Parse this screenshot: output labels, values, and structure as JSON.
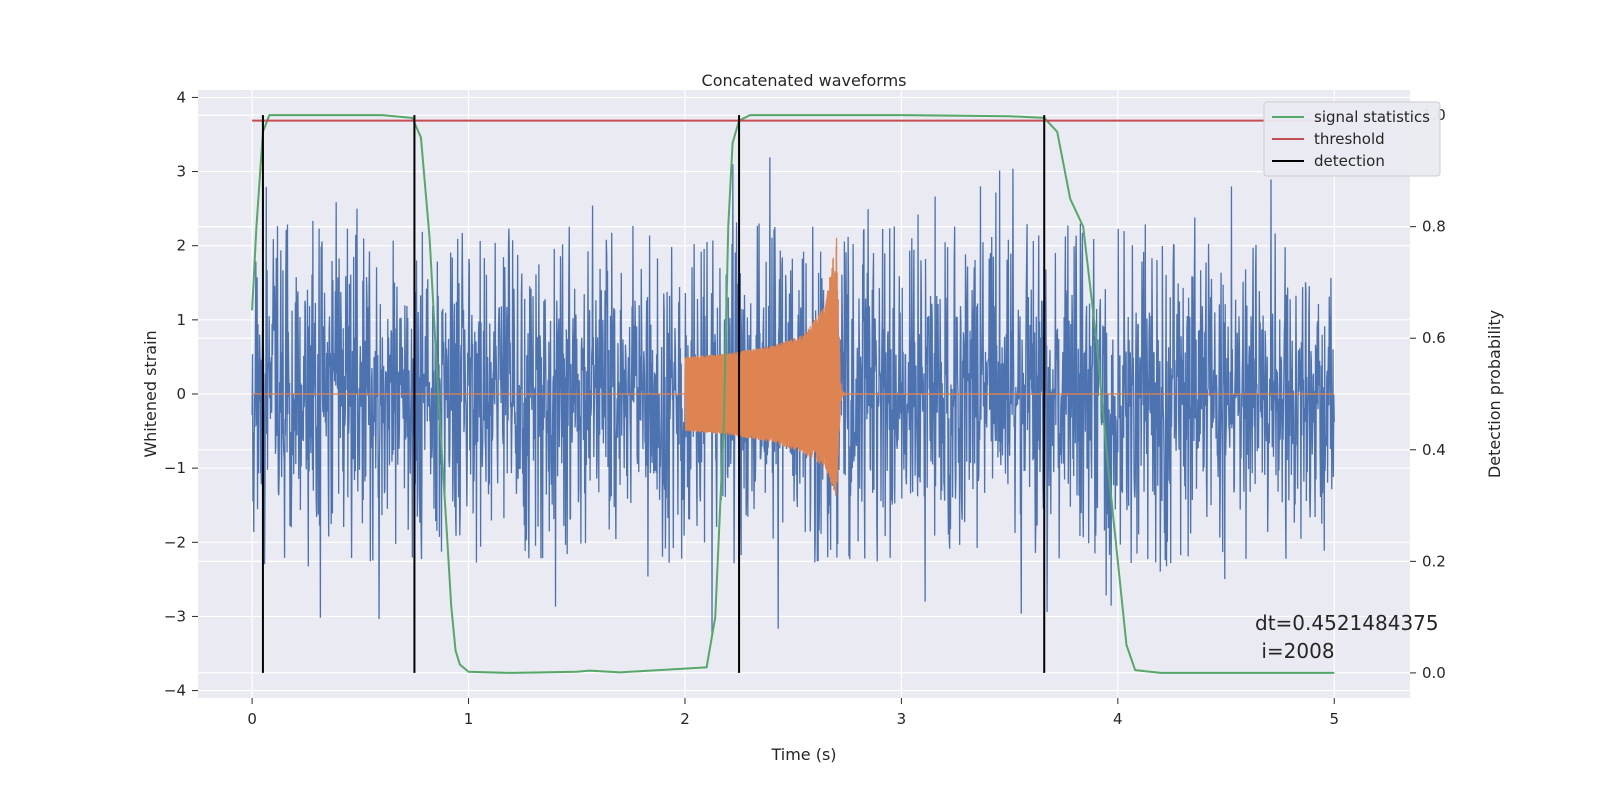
{
  "chart_data": {
    "type": "line",
    "title": "Concatenated waveforms",
    "xlabel": "Time (s)",
    "ylabel": "Whitened strain",
    "ylabel_right": "Detection probability",
    "xlim": [
      -0.25,
      5.35
    ],
    "ylim": [
      -4.1,
      4.1
    ],
    "ylim_right": [
      -0.045,
      1.045
    ],
    "x_ticks": [
      0,
      1,
      2,
      3,
      4,
      5
    ],
    "y_ticks": [
      -4,
      -3,
      -2,
      -1,
      0,
      1,
      2,
      3,
      4
    ],
    "y_ticks_right": [
      0.0,
      0.2,
      0.4,
      0.6,
      0.8,
      1.0
    ],
    "x_tick_labels": [
      "0",
      "1",
      "2",
      "3",
      "4",
      "5"
    ],
    "y_tick_labels": [
      "−4",
      "−3",
      "−2",
      "−1",
      "0",
      "1",
      "2",
      "3",
      "4"
    ],
    "y_tick_labels_right": [
      "0.0",
      "0.2",
      "0.4",
      "0.6",
      "0.8",
      "1.0"
    ],
    "grid": true,
    "legend_position": "top-right",
    "legend": [
      {
        "label": "signal statistics",
        "color": "#55a868"
      },
      {
        "label": "threshold",
        "color": "#c44e52"
      },
      {
        "label": "detection",
        "color": "#000000"
      }
    ],
    "series": [
      {
        "kind": "noise-strain",
        "axis": "left",
        "color": "#4c72b0",
        "x_range": [
          0,
          5
        ],
        "core_amplitude": 0.75,
        "typical_peak_amplitude": 2.2,
        "max_abs": 3.7
      },
      {
        "kind": "injected-waveform",
        "axis": "left",
        "color": "#dd8452",
        "x_range": [
          0,
          5
        ],
        "chirp_x": [
          2.0,
          2.72
        ],
        "envelope_x": [
          2.0,
          2.2,
          2.4,
          2.55,
          2.65,
          2.7,
          2.72
        ],
        "envelope_upper": [
          0.5,
          0.55,
          0.65,
          0.8,
          1.2,
          2.2,
          0.0
        ],
        "envelope_lower": [
          -0.5,
          -0.55,
          -0.65,
          -0.8,
          -1.0,
          -1.4,
          0.0
        ]
      },
      {
        "name": "signal statistics",
        "axis": "right",
        "color": "#55a868",
        "x": [
          0,
          0.02,
          0.05,
          0.08,
          0.12,
          0.3,
          0.6,
          0.74,
          0.78,
          0.82,
          0.86,
          0.9,
          0.92,
          0.94,
          0.96,
          1.0,
          1.2,
          1.5,
          1.56,
          1.7,
          2.1,
          2.14,
          2.18,
          2.2,
          2.22,
          2.25,
          2.3,
          2.5,
          3.0,
          3.5,
          3.66,
          3.72,
          3.78,
          3.84,
          3.9,
          3.96,
          4.0,
          4.04,
          4.08,
          4.2,
          4.6,
          5.0
        ],
        "y": [
          0.65,
          0.8,
          0.97,
          1.0,
          1.0,
          1.0,
          1.0,
          0.995,
          0.96,
          0.78,
          0.5,
          0.25,
          0.12,
          0.04,
          0.015,
          0.002,
          0.0,
          0.002,
          0.004,
          0.001,
          0.01,
          0.1,
          0.45,
          0.8,
          0.95,
          0.99,
          1.0,
          1.0,
          1.0,
          0.998,
          0.995,
          0.97,
          0.85,
          0.8,
          0.6,
          0.35,
          0.2,
          0.05,
          0.005,
          0.0,
          0.0,
          0.0
        ]
      },
      {
        "name": "threshold",
        "axis": "right",
        "color": "#c44e52",
        "x": [
          0,
          5
        ],
        "y": [
          0.99,
          0.99
        ]
      },
      {
        "name": "detection",
        "axis": "right",
        "color": "#000000",
        "kind": "vertical-lines",
        "x": [
          0.05,
          0.75,
          2.25,
          3.66
        ],
        "y_range": [
          0.0,
          1.0
        ]
      }
    ],
    "annotation": {
      "line1": "dt=0.4521484375",
      "line2": " i=2008",
      "x": 4.5,
      "y": 0.1
    }
  }
}
